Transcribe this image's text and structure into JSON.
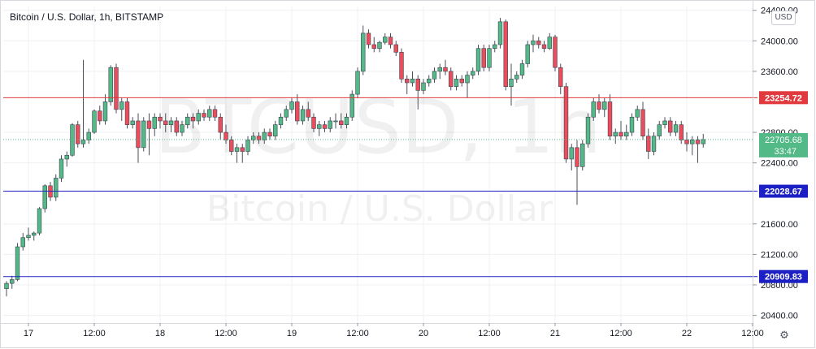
{
  "header": {
    "title": "Bitcoin / U.S. Dollar, 1h, BITSTAMP"
  },
  "currency_badge": "USD",
  "watermark": {
    "symbol": "BTCUSD, 1h",
    "name": "Bitcoin / U.S. Dollar"
  },
  "colors": {
    "up": "#53b987",
    "down": "#eb4d5c",
    "resistance": "#e0393e",
    "support": "#1c20c4",
    "grid": "#eef0f3"
  },
  "chart_data": {
    "type": "candlestick",
    "title": "Bitcoin / U.S. Dollar, 1h, BITSTAMP",
    "xlabel": "",
    "ylabel": "",
    "ylim": [
      20300,
      24450
    ],
    "yticks": [
      {
        "value": 24400,
        "label": "24400.00"
      },
      {
        "value": 24000,
        "label": "24000.00"
      },
      {
        "value": 23600,
        "label": "23600.00"
      },
      {
        "value": 22800,
        "label": "22800.00"
      },
      {
        "value": 22400,
        "label": "22400.00"
      },
      {
        "value": 21600,
        "label": "21600.00"
      },
      {
        "value": 21200,
        "label": "21200.00"
      },
      {
        "value": 20800,
        "label": "20800.00"
      },
      {
        "value": 20400,
        "label": "20400.00"
      }
    ],
    "xticks": [
      {
        "index": 4,
        "label": "17"
      },
      {
        "index": 16,
        "label": "12:00"
      },
      {
        "index": 28,
        "label": "18"
      },
      {
        "index": 40,
        "label": "12:00"
      },
      {
        "index": 52,
        "label": "19"
      },
      {
        "index": 64,
        "label": "12:00"
      },
      {
        "index": 76,
        "label": "20"
      },
      {
        "index": 88,
        "label": "12:00"
      },
      {
        "index": 100,
        "label": "21"
      },
      {
        "index": 112,
        "label": "12:00"
      },
      {
        "index": 124,
        "label": "22"
      },
      {
        "index": 136,
        "label": "12:00"
      }
    ],
    "horizontal_lines": [
      {
        "name": "resistance",
        "value": 23254.72,
        "label": "23254.72"
      },
      {
        "name": "support",
        "value": 22028.67,
        "label": "22028.67"
      },
      {
        "name": "support-low",
        "value": 20909.83,
        "label": "20909.83"
      }
    ],
    "last_price": {
      "value": 22705.68,
      "label": "22705.68",
      "countdown": "33:47"
    },
    "candles": [
      [
        20750,
        20850,
        20650,
        20820
      ],
      [
        20820,
        20920,
        20750,
        20870
      ],
      [
        20870,
        21350,
        20850,
        21300
      ],
      [
        21300,
        21480,
        21250,
        21420
      ],
      [
        21420,
        21550,
        21380,
        21450
      ],
      [
        21450,
        21500,
        21380,
        21480
      ],
      [
        21480,
        21820,
        21450,
        21800
      ],
      [
        21800,
        22120,
        21750,
        22100
      ],
      [
        22100,
        22150,
        21900,
        21950
      ],
      [
        21950,
        22250,
        21900,
        22200
      ],
      [
        22200,
        22500,
        22150,
        22450
      ],
      [
        22450,
        22550,
        22350,
        22500
      ],
      [
        22500,
        22920,
        22480,
        22900
      ],
      [
        22900,
        22950,
        22600,
        22650
      ],
      [
        22650,
        23750,
        22600,
        22700
      ],
      [
        22700,
        22850,
        22650,
        22800
      ],
      [
        22800,
        23100,
        22780,
        23080
      ],
      [
        23080,
        23150,
        22900,
        22950
      ],
      [
        22950,
        23300,
        22900,
        23200
      ],
      [
        23200,
        23680,
        23150,
        23650
      ],
      [
        23650,
        23700,
        23050,
        23100
      ],
      [
        23100,
        23250,
        22950,
        23200
      ],
      [
        23200,
        23250,
        22850,
        22900
      ],
      [
        22900,
        23000,
        22850,
        22950
      ],
      [
        22950,
        23050,
        22400,
        22600
      ],
      [
        22600,
        23000,
        22550,
        22950
      ],
      [
        22950,
        23050,
        22500,
        22850
      ],
      [
        22850,
        23050,
        22750,
        23000
      ],
      [
        23000,
        23050,
        22850,
        22950
      ],
      [
        22950,
        23050,
        22800,
        22900
      ],
      [
        22900,
        23000,
        22800,
        22950
      ],
      [
        22950,
        23000,
        22750,
        22800
      ],
      [
        22800,
        22950,
        22750,
        22900
      ],
      [
        22900,
        23050,
        22850,
        23000
      ],
      [
        23000,
        23050,
        22850,
        22950
      ],
      [
        22950,
        23100,
        22900,
        23050
      ],
      [
        23050,
        23100,
        22950,
        23000
      ],
      [
        23000,
        23150,
        22950,
        23100
      ],
      [
        23100,
        23150,
        22950,
        23000
      ],
      [
        23000,
        23050,
        22700,
        22800
      ],
      [
        22800,
        22900,
        22650,
        22700
      ],
      [
        22700,
        22750,
        22500,
        22550
      ],
      [
        22550,
        22650,
        22400,
        22600
      ],
      [
        22600,
        22650,
        22400,
        22550
      ],
      [
        22550,
        22750,
        22500,
        22700
      ],
      [
        22700,
        22800,
        22650,
        22750
      ],
      [
        22750,
        22800,
        22650,
        22700
      ],
      [
        22700,
        22850,
        22650,
        22800
      ],
      [
        22800,
        22850,
        22700,
        22750
      ],
      [
        22750,
        22950,
        22700,
        22900
      ],
      [
        22900,
        23050,
        22850,
        23000
      ],
      [
        23000,
        23150,
        22950,
        23100
      ],
      [
        23100,
        23250,
        23050,
        23200
      ],
      [
        23200,
        23300,
        22900,
        22950
      ],
      [
        22950,
        23150,
        22900,
        23100
      ],
      [
        23100,
        23200,
        22950,
        23000
      ],
      [
        23000,
        23050,
        22800,
        22850
      ],
      [
        22850,
        22950,
        22750,
        22900
      ],
      [
        22900,
        22950,
        22800,
        22850
      ],
      [
        22850,
        23000,
        22800,
        22950
      ],
      [
        22950,
        23050,
        22850,
        22950
      ],
      [
        22950,
        23050,
        22850,
        22900
      ],
      [
        22900,
        23050,
        22850,
        23000
      ],
      [
        23000,
        23350,
        22950,
        23300
      ],
      [
        23300,
        23650,
        23250,
        23600
      ],
      [
        23600,
        24200,
        23550,
        24100
      ],
      [
        24100,
        24150,
        23900,
        23950
      ],
      [
        23950,
        24050,
        23850,
        23900
      ],
      [
        23900,
        24000,
        23850,
        23980
      ],
      [
        23980,
        24100,
        23950,
        24050
      ],
      [
        24050,
        24100,
        23900,
        23950
      ],
      [
        23950,
        24000,
        23800,
        23850
      ],
      [
        23850,
        23900,
        23450,
        23500
      ],
      [
        23500,
        23550,
        23300,
        23450
      ],
      [
        23450,
        23600,
        23400,
        23500
      ],
      [
        23500,
        23550,
        23100,
        23350
      ],
      [
        23350,
        23500,
        23300,
        23450
      ],
      [
        23450,
        23550,
        23400,
        23500
      ],
      [
        23500,
        23650,
        23450,
        23600
      ],
      [
        23600,
        23700,
        23500,
        23650
      ],
      [
        23650,
        23750,
        23550,
        23600
      ],
      [
        23600,
        23650,
        23350,
        23400
      ],
      [
        23400,
        23550,
        23350,
        23500
      ],
      [
        23500,
        23550,
        23400,
        23450
      ],
      [
        23450,
        23600,
        23250,
        23550
      ],
      [
        23550,
        23650,
        23500,
        23600
      ],
      [
        23600,
        23950,
        23550,
        23900
      ],
      [
        23900,
        23950,
        23600,
        23650
      ],
      [
        23650,
        23950,
        23600,
        23900
      ],
      [
        23900,
        24000,
        23850,
        23950
      ],
      [
        23950,
        24300,
        23900,
        24250
      ],
      [
        24250,
        24280,
        23350,
        23400
      ],
      [
        23400,
        23700,
        23150,
        23500
      ],
      [
        23500,
        23600,
        23450,
        23550
      ],
      [
        23550,
        23750,
        23500,
        23700
      ],
      [
        23700,
        24000,
        23650,
        23950
      ],
      [
        23950,
        24080,
        23850,
        24000
      ],
      [
        24000,
        24050,
        23900,
        23950
      ],
      [
        23950,
        24000,
        23850,
        23900
      ],
      [
        23900,
        24100,
        23880,
        24050
      ],
      [
        24050,
        24080,
        23600,
        23650
      ],
      [
        23650,
        23700,
        23300,
        23400
      ],
      [
        23400,
        23450,
        22400,
        22450
      ],
      [
        22450,
        22650,
        22300,
        22600
      ],
      [
        22600,
        22700,
        21850,
        22350
      ],
      [
        22350,
        22700,
        22300,
        22650
      ],
      [
        22650,
        23050,
        22600,
        23000
      ],
      [
        23000,
        23250,
        22950,
        23200
      ],
      [
        23200,
        23300,
        23050,
        23100
      ],
      [
        23100,
        23250,
        23000,
        23200
      ],
      [
        23200,
        23300,
        22700,
        22750
      ],
      [
        22750,
        22850,
        22650,
        22800
      ],
      [
        22800,
        22950,
        22700,
        22750
      ],
      [
        22750,
        22900,
        22700,
        22800
      ],
      [
        22800,
        23050,
        22750,
        23000
      ],
      [
        23000,
        23150,
        22950,
        23100
      ],
      [
        23100,
        23200,
        22700,
        22750
      ],
      [
        22750,
        22850,
        22450,
        22550
      ],
      [
        22550,
        22800,
        22500,
        22750
      ],
      [
        22750,
        22950,
        22700,
        22900
      ],
      [
        22900,
        23000,
        22850,
        22950
      ],
      [
        22950,
        23000,
        22750,
        22800
      ],
      [
        22800,
        22950,
        22750,
        22900
      ],
      [
        22900,
        22950,
        22650,
        22700
      ],
      [
        22700,
        22800,
        22550,
        22650
      ],
      [
        22650,
        22750,
        22500,
        22700
      ],
      [
        22700,
        22750,
        22400,
        22650
      ],
      [
        22650,
        22780,
        22600,
        22705.68
      ]
    ]
  }
}
